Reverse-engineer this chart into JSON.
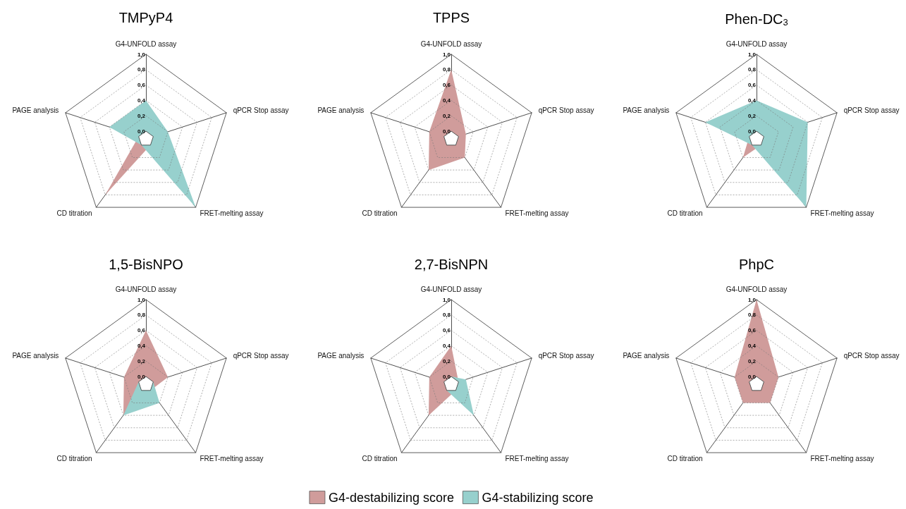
{
  "chart_data": [
    {
      "type": "radar",
      "title": "TMPyP4",
      "categories": [
        "G4-UNFOLD assay",
        "qPCR Stop assay",
        "FRET-melting assay",
        "CD titration",
        "PAGE analysis"
      ],
      "ylim": [
        -0.1,
        1
      ],
      "yticks": [
        {
          "value": 0,
          "label": "0,0"
        },
        {
          "value": 0.2,
          "label": "0,2"
        },
        {
          "value": 0.4,
          "label": "0,4"
        },
        {
          "value": 0.6,
          "label": "0,6"
        },
        {
          "value": 0.8,
          "label": "0,8"
        },
        {
          "value": 1,
          "label": "1,0"
        }
      ],
      "grid": true,
      "marker": "none",
      "series": [
        {
          "color": "#d09c9b",
          "values": [
            0,
            0,
            0,
            0.8,
            0
          ]
        },
        {
          "color": "#97d0cd",
          "values": [
            0.4,
            0.2,
            1,
            0,
            0.4
          ]
        }
      ]
    },
    {
      "type": "radar",
      "title": "TPPS",
      "categories": [
        "G4-UNFOLD assay",
        "qPCR Stop assay",
        "FRET-melting assay",
        "CD titration",
        "PAGE analysis"
      ],
      "ylim": [
        -0.1,
        1
      ],
      "yticks": [
        {
          "value": 0,
          "label": "0,0"
        },
        {
          "value": 0.2,
          "label": "0,2"
        },
        {
          "value": 0.4,
          "label": "0,4"
        },
        {
          "value": 0.6,
          "label": "0,6"
        },
        {
          "value": 0.8,
          "label": "0,8"
        },
        {
          "value": 1,
          "label": "1,0"
        }
      ],
      "grid": true,
      "marker": "none",
      "series": [
        {
          "color": "#d09c9b",
          "values": [
            0.8,
            0.1,
            0.2,
            0.4,
            0.2
          ]
        },
        {
          "color": "#97d0cd",
          "values": [
            0,
            0,
            0,
            0,
            0
          ]
        }
      ]
    },
    {
      "type": "radar",
      "title": "Phen-DC$_{3}$",
      "categories": [
        "G4-UNFOLD assay",
        "qPCR Stop assay",
        "FRET-melting assay",
        "CD titration",
        "PAGE analysis"
      ],
      "ylim": [
        -0.1,
        1
      ],
      "yticks": [
        {
          "value": 0,
          "label": "0,0"
        },
        {
          "value": 0.2,
          "label": "0,2"
        },
        {
          "value": 0.4,
          "label": "0,4"
        },
        {
          "value": 0.6,
          "label": "0,6"
        },
        {
          "value": 0.8,
          "label": "0,8"
        },
        {
          "value": 1,
          "label": "1,0"
        }
      ],
      "grid": true,
      "marker": "none",
      "series": [
        {
          "color": "#d09c9b",
          "values": [
            0,
            0,
            0,
            0.2,
            0
          ]
        },
        {
          "color": "#97d0cd",
          "values": [
            0.4,
            0.6,
            1,
            0,
            0.6
          ]
        }
      ]
    },
    {
      "type": "radar",
      "title": "1,5-BisNPO",
      "categories": [
        "G4-UNFOLD assay",
        "qPCR Stop assay",
        "FRET-melting assay",
        "CD titration",
        "PAGE analysis"
      ],
      "ylim": [
        -0.1,
        1
      ],
      "yticks": [
        {
          "value": 0,
          "label": "0,0"
        },
        {
          "value": 0.2,
          "label": "0,2"
        },
        {
          "value": 0.4,
          "label": "0,4"
        },
        {
          "value": 0.6,
          "label": "0,6"
        },
        {
          "value": 0.8,
          "label": "0,8"
        },
        {
          "value": 1,
          "label": "1,0"
        }
      ],
      "grid": true,
      "marker": "none",
      "series": [
        {
          "color": "#d09c9b",
          "values": [
            0.6,
            0.2,
            0,
            0.4,
            0.2
          ]
        },
        {
          "color": "#97d0cd",
          "values": [
            0,
            0,
            0.2,
            0.4,
            0
          ]
        }
      ]
    },
    {
      "type": "radar",
      "title": "2,7-BisNPN",
      "categories": [
        "G4-UNFOLD assay",
        "qPCR Stop assay",
        "FRET-melting assay",
        "CD titration",
        "PAGE analysis"
      ],
      "ylim": [
        -0.1,
        1
      ],
      "yticks": [
        {
          "value": 0,
          "label": "0,0"
        },
        {
          "value": 0.2,
          "label": "0,2"
        },
        {
          "value": 0.4,
          "label": "0,4"
        },
        {
          "value": 0.6,
          "label": "0,6"
        },
        {
          "value": 0.8,
          "label": "0,8"
        },
        {
          "value": 1,
          "label": "1,0"
        }
      ],
      "grid": true,
      "marker": "none",
      "legend": "bottom",
      "series": [
        {
          "name": "G4-destabilizing score",
          "color": "#d09c9b",
          "values": [
            0.4,
            0,
            0,
            0.4,
            0.2
          ]
        },
        {
          "name": "G4-stabilizing score",
          "color": "#97d0cd",
          "values": [
            0,
            0.1,
            0.4,
            0,
            0
          ]
        }
      ]
    },
    {
      "type": "radar",
      "title": "PhpC",
      "categories": [
        "G4-UNFOLD assay",
        "qPCR Stop assay",
        "FRET-melting assay",
        "CD titration",
        "PAGE analysis"
      ],
      "ylim": [
        -0.1,
        1
      ],
      "yticks": [
        {
          "value": 0,
          "label": "0,0"
        },
        {
          "value": 0.2,
          "label": "0,2"
        },
        {
          "value": 0.4,
          "label": "0,4"
        },
        {
          "value": 0.6,
          "label": "0,6"
        },
        {
          "value": 0.8,
          "label": "0,8"
        },
        {
          "value": 1,
          "label": "1,0"
        }
      ],
      "grid": true,
      "marker": "none",
      "series": [
        {
          "color": "#d09c9b",
          "values": [
            1,
            0.2,
            0.2,
            0.2,
            0.2
          ]
        },
        {
          "color": "#97d0cd",
          "values": [
            0,
            0,
            0,
            0,
            0
          ]
        }
      ]
    }
  ]
}
